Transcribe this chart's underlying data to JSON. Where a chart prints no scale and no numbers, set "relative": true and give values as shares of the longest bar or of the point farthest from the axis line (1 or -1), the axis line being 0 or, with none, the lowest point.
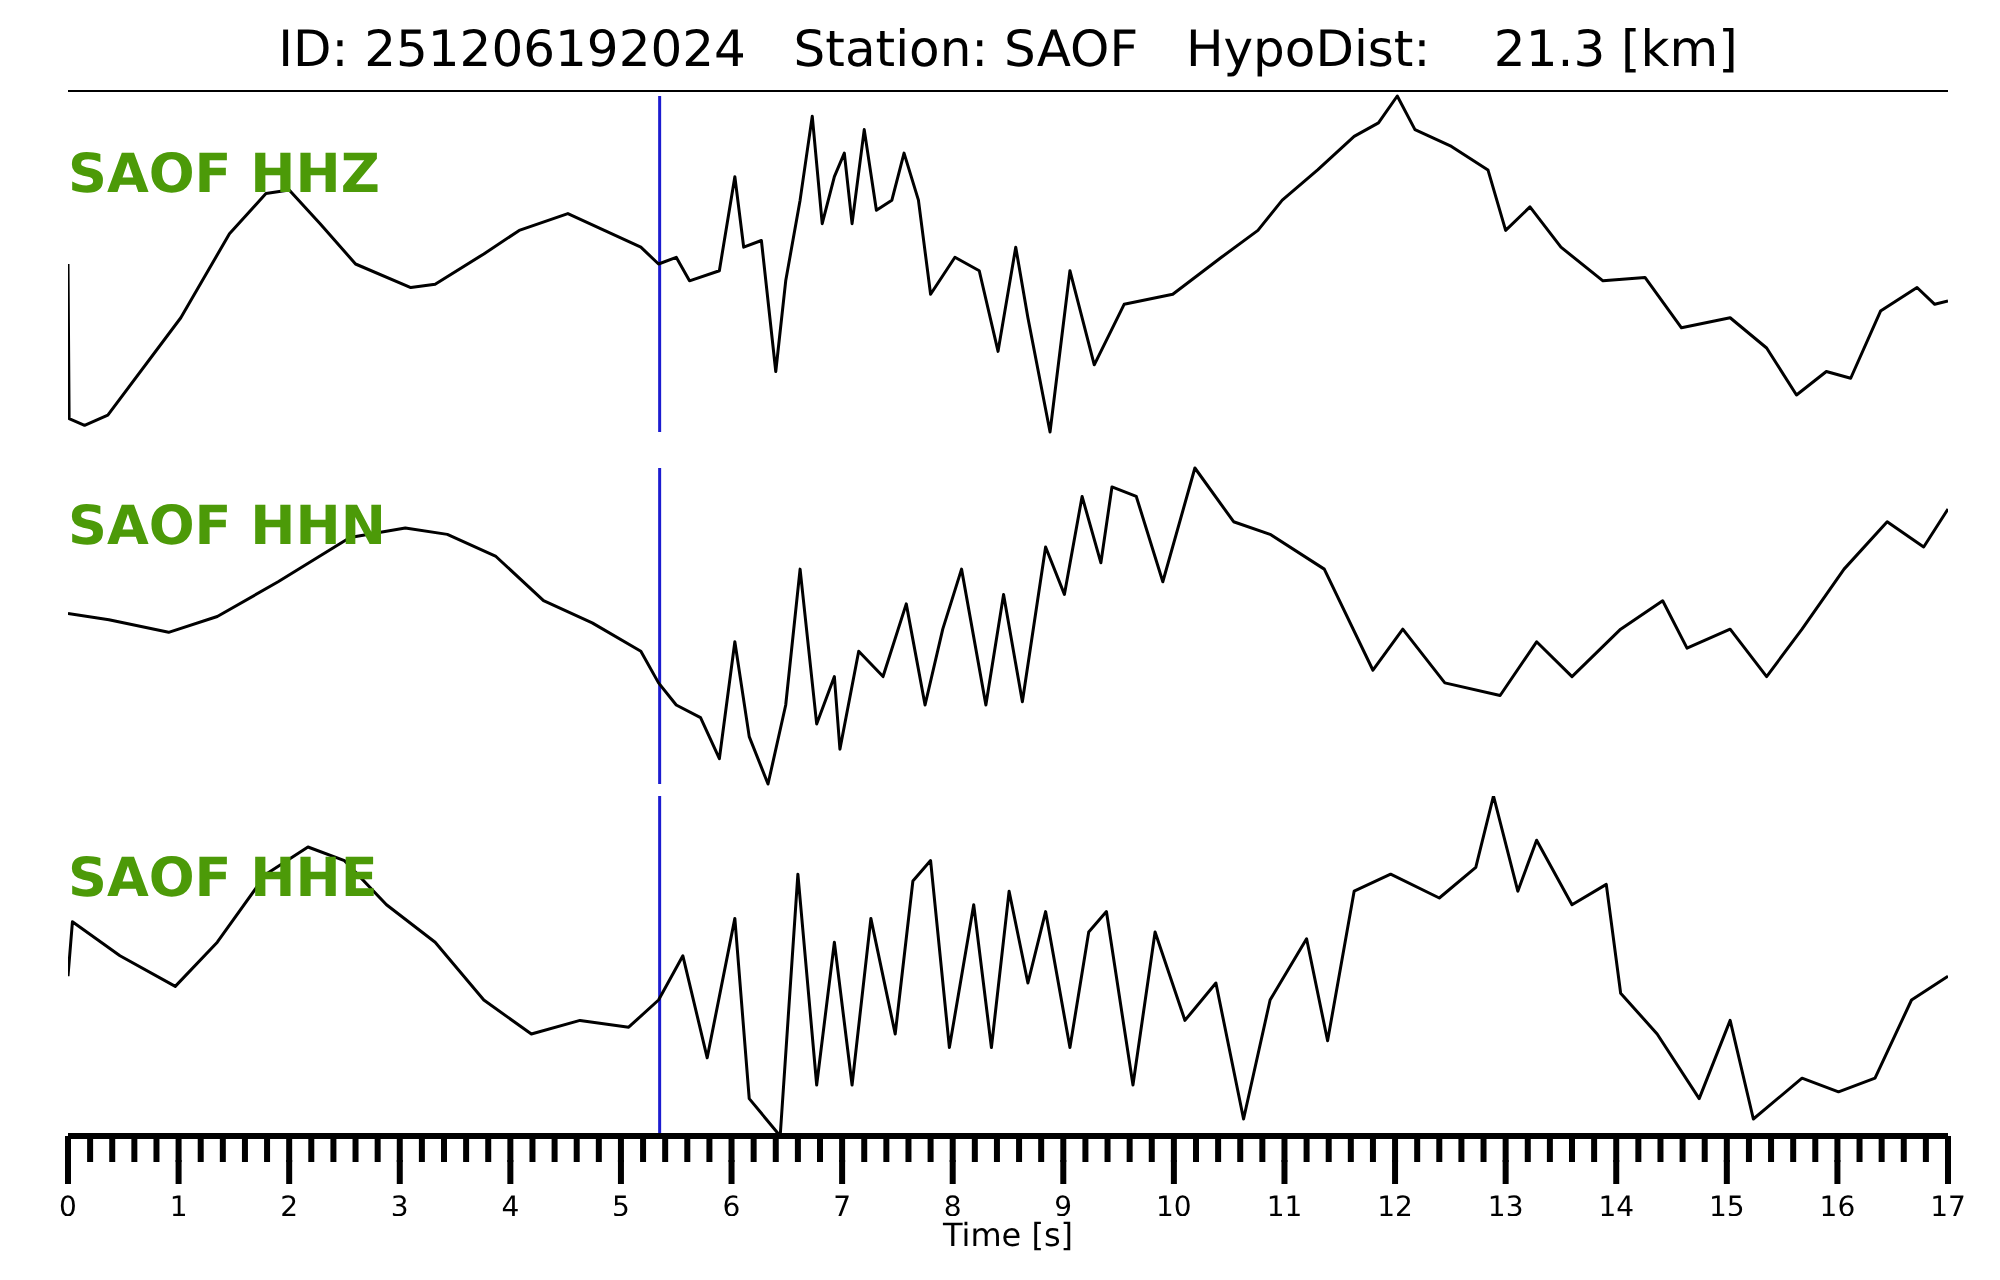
{
  "chart_data": [
    {
      "type": "line",
      "title": "ID: 251206192024   Station: SAOF   HypoDist:    21.3 [km]",
      "relative": true,
      "xlim": [
        0,
        17
      ],
      "tick_labels": false,
      "color": "#000000",
      "annotations": [
        "SAOF HHZ"
      ],
      "ref_lines": [
        {
          "axis": "x",
          "value": 5.35,
          "color": "#1c1cd0"
        }
      ],
      "x": [
        0,
        0.01,
        0.15,
        0.36,
        1.02,
        1.46,
        1.79,
        2.0,
        2.28,
        2.6,
        3.1,
        3.32,
        3.76,
        4.08,
        4.52,
        4.85,
        5.18,
        5.34,
        5.5,
        5.62,
        5.89,
        6.03,
        6.11,
        6.27,
        6.4,
        6.49,
        6.62,
        6.73,
        6.82,
        6.93,
        7.02,
        7.09,
        7.2,
        7.31,
        7.45,
        7.56,
        7.69,
        7.8,
        8.02,
        8.24,
        8.41,
        8.57,
        8.68,
        8.88,
        9.06,
        9.28,
        9.55,
        9.99,
        10.43,
        10.76,
        10.98,
        11.3,
        11.63,
        11.85,
        12.02,
        12.18,
        12.51,
        12.84,
        13.0,
        13.22,
        13.5,
        13.88,
        14.26,
        14.59,
        15.03,
        15.36,
        15.63,
        15.9,
        16.12,
        16.39,
        16.72,
        16.88,
        17.0
      ],
      "values": [
        0.5,
        0.04,
        0.02,
        0.05,
        0.34,
        0.59,
        0.71,
        0.72,
        0.62,
        0.5,
        0.43,
        0.44,
        0.53,
        0.6,
        0.65,
        0.6,
        0.55,
        0.5,
        0.52,
        0.45,
        0.48,
        0.76,
        0.55,
        0.57,
        0.18,
        0.45,
        0.69,
        0.94,
        0.62,
        0.76,
        0.83,
        0.62,
        0.9,
        0.66,
        0.69,
        0.83,
        0.69,
        0.41,
        0.52,
        0.48,
        0.24,
        0.55,
        0.34,
        0,
        0.48,
        0.2,
        0.38,
        0.41,
        0.52,
        0.6,
        0.69,
        0.78,
        0.88,
        0.92,
        1,
        0.9,
        0.85,
        0.78,
        0.6,
        0.67,
        0.55,
        0.45,
        0.46,
        0.31,
        0.34,
        0.25,
        0.11,
        0.18,
        0.16,
        0.36,
        0.43,
        0.38,
        0.39
      ]
    },
    {
      "type": "line",
      "relative": true,
      "xlim": [
        0,
        17
      ],
      "tick_labels": false,
      "color": "#000000",
      "annotations": [
        "SAOF HHN"
      ],
      "ref_lines": [
        {
          "axis": "x",
          "value": 5.35,
          "color": "#1c1cd0"
        }
      ],
      "x": [
        0,
        0.37,
        0.91,
        1.35,
        1.9,
        2.55,
        3.05,
        3.43,
        3.87,
        4.3,
        4.74,
        5.18,
        5.34,
        5.5,
        5.72,
        5.89,
        6.03,
        6.16,
        6.33,
        6.49,
        6.62,
        6.77,
        6.93,
        6.98,
        7.15,
        7.37,
        7.58,
        7.75,
        7.91,
        8.08,
        8.3,
        8.46,
        8.63,
        8.84,
        9.01,
        9.17,
        9.34,
        9.44,
        9.66,
        9.9,
        10.19,
        10.54,
        10.87,
        11.36,
        11.8,
        12.07,
        12.45,
        12.95,
        13.28,
        13.6,
        14.04,
        14.42,
        14.64,
        15.03,
        15.36,
        15.68,
        16.06,
        16.45,
        16.78,
        17.0
      ],
      "values": [
        0.54,
        0.52,
        0.48,
        0.53,
        0.64,
        0.78,
        0.81,
        0.79,
        0.72,
        0.58,
        0.51,
        0.42,
        0.32,
        0.25,
        0.21,
        0.08,
        0.45,
        0.15,
        0,
        0.25,
        0.68,
        0.19,
        0.34,
        0.11,
        0.42,
        0.34,
        0.57,
        0.25,
        0.49,
        0.68,
        0.25,
        0.6,
        0.26,
        0.75,
        0.6,
        0.91,
        0.7,
        0.94,
        0.91,
        0.64,
        1,
        0.83,
        0.79,
        0.68,
        0.36,
        0.49,
        0.32,
        0.28,
        0.45,
        0.34,
        0.49,
        0.58,
        0.43,
        0.49,
        0.34,
        0.49,
        0.68,
        0.83,
        0.75,
        0.87
      ]
    },
    {
      "type": "line",
      "relative": true,
      "xlim": [
        0,
        17
      ],
      "xlabel": "Time [s]",
      "color": "#000000",
      "annotations": [
        "SAOF HHE"
      ],
      "ref_lines": [
        {
          "axis": "x",
          "value": 5.35,
          "color": "#1c1cd0"
        }
      ],
      "xticks": [
        0,
        {
          "value": 0.2,
          "label": null
        },
        {
          "value": 0.4,
          "label": null
        },
        {
          "value": 0.6,
          "label": null
        },
        {
          "value": 0.8,
          "label": null
        },
        1,
        {
          "value": 1.2,
          "label": null
        },
        {
          "value": 1.4,
          "label": null
        },
        {
          "value": 1.6,
          "label": null
        },
        {
          "value": 1.8,
          "label": null
        },
        2,
        {
          "value": 2.2,
          "label": null
        },
        {
          "value": 2.4,
          "label": null
        },
        {
          "value": 2.6,
          "label": null
        },
        {
          "value": 2.8,
          "label": null
        },
        3,
        {
          "value": 3.2,
          "label": null
        },
        {
          "value": 3.4,
          "label": null
        },
        {
          "value": 3.6,
          "label": null
        },
        {
          "value": 3.8,
          "label": null
        },
        4,
        {
          "value": 4.2,
          "label": null
        },
        {
          "value": 4.4,
          "label": null
        },
        {
          "value": 4.6,
          "label": null
        },
        {
          "value": 4.8,
          "label": null
        },
        5,
        {
          "value": 5.2,
          "label": null
        },
        {
          "value": 5.4,
          "label": null
        },
        {
          "value": 5.6,
          "label": null
        },
        {
          "value": 5.8,
          "label": null
        },
        6,
        {
          "value": 6.2,
          "label": null
        },
        {
          "value": 6.4,
          "label": null
        },
        {
          "value": 6.6,
          "label": null
        },
        {
          "value": 6.8,
          "label": null
        },
        7,
        {
          "value": 7.2,
          "label": null
        },
        {
          "value": 7.4,
          "label": null
        },
        {
          "value": 7.6,
          "label": null
        },
        {
          "value": 7.8,
          "label": null
        },
        8,
        {
          "value": 8.2,
          "label": null
        },
        {
          "value": 8.4,
          "label": null
        },
        {
          "value": 8.6,
          "label": null
        },
        {
          "value": 8.8,
          "label": null
        },
        9,
        {
          "value": 9.2,
          "label": null
        },
        {
          "value": 9.4,
          "label": null
        },
        {
          "value": 9.6,
          "label": null
        },
        {
          "value": 9.8,
          "label": null
        },
        10,
        {
          "value": 10.2,
          "label": null
        },
        {
          "value": 10.4,
          "label": null
        },
        {
          "value": 10.6,
          "label": null
        },
        {
          "value": 10.8,
          "label": null
        },
        11,
        {
          "value": 11.2,
          "label": null
        },
        {
          "value": 11.4,
          "label": null
        },
        {
          "value": 11.6,
          "label": null
        },
        {
          "value": 11.8,
          "label": null
        },
        12,
        {
          "value": 12.2,
          "label": null
        },
        {
          "value": 12.4,
          "label": null
        },
        {
          "value": 12.6,
          "label": null
        },
        {
          "value": 12.8,
          "label": null
        },
        13,
        {
          "value": 13.2,
          "label": null
        },
        {
          "value": 13.4,
          "label": null
        },
        {
          "value": 13.6,
          "label": null
        },
        {
          "value": 13.8,
          "label": null
        },
        14,
        {
          "value": 14.2,
          "label": null
        },
        {
          "value": 14.4,
          "label": null
        },
        {
          "value": 14.6,
          "label": null
        },
        {
          "value": 14.8,
          "label": null
        },
        15,
        {
          "value": 15.2,
          "label": null
        },
        {
          "value": 15.4,
          "label": null
        },
        {
          "value": 15.6,
          "label": null
        },
        {
          "value": 15.8,
          "label": null
        },
        16,
        {
          "value": 16.2,
          "label": null
        },
        {
          "value": 16.4,
          "label": null
        },
        {
          "value": 16.6,
          "label": null
        },
        {
          "value": 16.8,
          "label": null
        },
        17
      ],
      "x": [
        0,
        0.04,
        0.47,
        0.97,
        1.35,
        1.79,
        2.17,
        2.5,
        2.88,
        3.32,
        3.76,
        4.19,
        4.63,
        5.07,
        5.34,
        5.56,
        5.78,
        6.03,
        6.16,
        6.44,
        6.6,
        6.77,
        6.93,
        7.09,
        7.26,
        7.48,
        7.64,
        7.8,
        7.97,
        8.19,
        8.35,
        8.51,
        8.68,
        8.84,
        9.06,
        9.23,
        9.39,
        9.63,
        9.83,
        10.1,
        10.38,
        10.63,
        10.87,
        11.2,
        11.39,
        11.63,
        11.96,
        12.4,
        12.73,
        12.89,
        13.11,
        13.28,
        13.6,
        13.91,
        14.04,
        14.37,
        14.75,
        15.03,
        15.24,
        15.68,
        16.01,
        16.34,
        16.67,
        17.0
      ],
      "values": [
        0.47,
        0.63,
        0.53,
        0.44,
        0.57,
        0.77,
        0.85,
        0.81,
        0.68,
        0.57,
        0.4,
        0.3,
        0.34,
        0.32,
        0.4,
        0.53,
        0.23,
        0.64,
        0.11,
        0,
        0.77,
        0.15,
        0.57,
        0.15,
        0.64,
        0.3,
        0.75,
        0.81,
        0.26,
        0.68,
        0.26,
        0.72,
        0.45,
        0.66,
        0.26,
        0.6,
        0.66,
        0.15,
        0.6,
        0.34,
        0.45,
        0.05,
        0.4,
        0.58,
        0.28,
        0.72,
        0.77,
        0.7,
        0.79,
        1,
        0.72,
        0.87,
        0.68,
        0.74,
        0.42,
        0.3,
        0.11,
        0.34,
        0.05,
        0.17,
        0.13,
        0.17,
        0.4,
        0.47
      ]
    }
  ]
}
